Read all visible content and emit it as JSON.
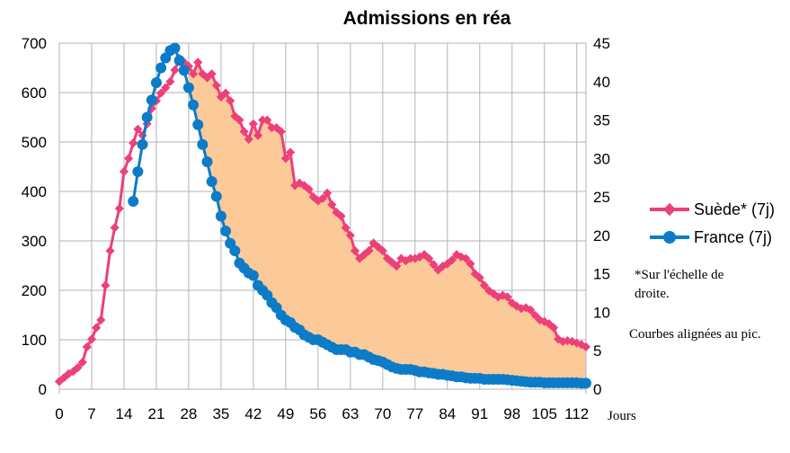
{
  "chart_data": {
    "type": "line",
    "title": "Admissions en réa",
    "x_unit_label": "Jours",
    "xlim": [
      0,
      114
    ],
    "x_ticks": [
      0,
      7,
      14,
      21,
      28,
      35,
      42,
      49,
      56,
      63,
      70,
      77,
      84,
      91,
      98,
      105,
      112
    ],
    "y_left": {
      "lim": [
        0,
        700
      ],
      "ticks": [
        0,
        100,
        200,
        300,
        400,
        500,
        600,
        700
      ]
    },
    "y_right": {
      "lim": [
        0,
        45
      ],
      "ticks": [
        0,
        5,
        10,
        15,
        20,
        25,
        30,
        35,
        40,
        45
      ]
    },
    "grid": true,
    "legend_position": "right",
    "fill_between_series": true,
    "fill_color": "#fcc998",
    "series": [
      {
        "name": "Suède* (7j)",
        "axis": "right",
        "color": "#ec4079",
        "marker": "diamond",
        "x": [
          0,
          1,
          2,
          3,
          4,
          5,
          6,
          7,
          8,
          9,
          10,
          11,
          12,
          13,
          14,
          15,
          16,
          17,
          18,
          19,
          20,
          21,
          22,
          23,
          24,
          25,
          26,
          27,
          28,
          29,
          30,
          31,
          32,
          33,
          34,
          35,
          36,
          37,
          38,
          39,
          40,
          41,
          42,
          43,
          44,
          45,
          46,
          47,
          48,
          49,
          50,
          51,
          52,
          53,
          54,
          55,
          56,
          57,
          58,
          59,
          60,
          61,
          62,
          63,
          64,
          65,
          66,
          67,
          68,
          69,
          70,
          71,
          72,
          73,
          74,
          75,
          76,
          77,
          78,
          79,
          80,
          81,
          82,
          83,
          84,
          85,
          86,
          87,
          88,
          89,
          90,
          91,
          92,
          93,
          94,
          95,
          96,
          97,
          98,
          99,
          100,
          101,
          102,
          103,
          104,
          105,
          106,
          107,
          108,
          109,
          110,
          111,
          112,
          113,
          114
        ],
        "y": [
          1.0,
          1.5,
          2.0,
          2.3,
          2.8,
          3.5,
          5.5,
          6.5,
          8.0,
          9.0,
          13.5,
          18.0,
          21.0,
          23.5,
          28.3,
          30.0,
          32.0,
          33.8,
          33.0,
          34.5,
          36.5,
          37.5,
          38.5,
          39.2,
          40.0,
          41.5,
          43.0,
          42.5,
          42.0,
          41.0,
          42.5,
          41.0,
          40.5,
          41.0,
          39.5,
          38.0,
          38.5,
          37.5,
          35.5,
          35.0,
          33.5,
          32.5,
          34.5,
          33.0,
          35.0,
          35.0,
          34.0,
          34.0,
          33.5,
          30.0,
          30.8,
          26.5,
          26.8,
          26.5,
          26.0,
          25.0,
          24.5,
          24.8,
          25.5,
          24.0,
          23.0,
          22.5,
          21.0,
          20.0,
          18.0,
          17.0,
          17.5,
          18.0,
          19.0,
          18.5,
          18.0,
          17.0,
          16.5,
          16.0,
          17.0,
          16.7,
          17.0,
          17.0,
          17.2,
          17.5,
          17.0,
          16.2,
          15.5,
          16.0,
          16.3,
          16.8,
          17.5,
          17.2,
          17.0,
          16.3,
          15.0,
          14.5,
          13.5,
          12.8,
          12.4,
          12.0,
          12.2,
          12.0,
          11.2,
          10.8,
          10.5,
          10.6,
          10.3,
          9.6,
          9.0,
          8.8,
          8.5,
          8.0,
          6.5,
          6.2,
          6.3,
          6.2,
          6.0,
          5.8,
          5.5
        ]
      },
      {
        "name": "France (7j)",
        "axis": "left",
        "color": "#0c7cc8",
        "marker": "circle",
        "x": [
          16,
          17,
          18,
          19,
          20,
          21,
          22,
          23,
          24,
          25,
          26,
          27,
          28,
          29,
          30,
          31,
          32,
          33,
          34,
          35,
          36,
          37,
          38,
          39,
          40,
          41,
          42,
          43,
          44,
          45,
          46,
          47,
          48,
          49,
          50,
          51,
          52,
          53,
          54,
          55,
          56,
          57,
          58,
          59,
          60,
          61,
          62,
          63,
          64,
          65,
          66,
          67,
          68,
          69,
          70,
          71,
          72,
          73,
          74,
          75,
          76,
          77,
          78,
          79,
          80,
          81,
          82,
          83,
          84,
          85,
          86,
          87,
          88,
          89,
          90,
          91,
          92,
          93,
          94,
          95,
          96,
          97,
          98,
          99,
          100,
          101,
          102,
          103,
          104,
          105,
          106,
          107,
          108,
          109,
          110,
          111,
          112,
          113,
          114
        ],
        "y": [
          380,
          440,
          495,
          550,
          585,
          620,
          650,
          670,
          685,
          690,
          665,
          645,
          610,
          575,
          535,
          495,
          460,
          420,
          390,
          350,
          320,
          295,
          280,
          255,
          245,
          235,
          230,
          210,
          200,
          190,
          175,
          165,
          150,
          140,
          135,
          125,
          120,
          110,
          105,
          100,
          100,
          95,
          90,
          85,
          80,
          80,
          80,
          75,
          75,
          70,
          70,
          65,
          60,
          58,
          55,
          50,
          45,
          42,
          40,
          40,
          40,
          38,
          35,
          35,
          33,
          32,
          30,
          30,
          28,
          27,
          25,
          25,
          23,
          22,
          22,
          22,
          20,
          20,
          20,
          20,
          20,
          19,
          18,
          17,
          16,
          15,
          14,
          14,
          14,
          13,
          13,
          13,
          13,
          13,
          13,
          13,
          13,
          12,
          12
        ]
      }
    ],
    "annotations": [
      "*Sur l'échelle de",
      "droite.",
      "Courbes alignées au pic."
    ]
  }
}
